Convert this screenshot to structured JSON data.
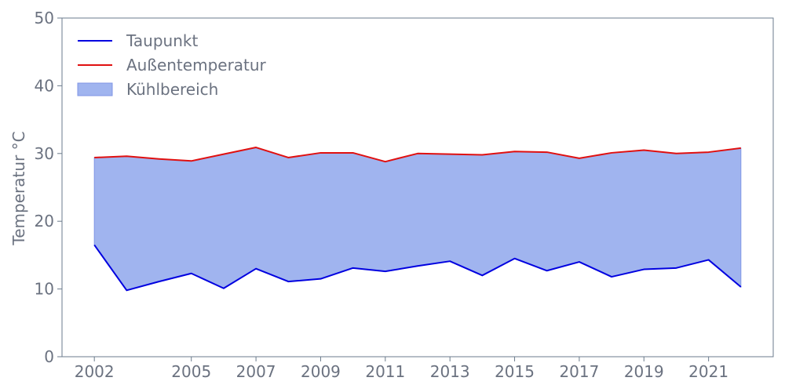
{
  "chart_data": {
    "type": "line",
    "title": "",
    "xlabel": "",
    "ylabel": "Temperatur °C",
    "ylim": [
      0,
      50
    ],
    "xlim": [
      2001,
      2023
    ],
    "grid": false,
    "legend_position": "top-left",
    "x_ticks": [
      2002,
      2005,
      2007,
      2009,
      2011,
      2013,
      2015,
      2017,
      2019,
      2021
    ],
    "y_ticks": [
      0,
      10,
      20,
      30,
      40,
      50
    ],
    "x": [
      2002,
      2003,
      2004,
      2005,
      2006,
      2007,
      2008,
      2009,
      2010,
      2011,
      2012,
      2013,
      2014,
      2015,
      2016,
      2017,
      2018,
      2019,
      2020,
      2021,
      2022
    ],
    "series": [
      {
        "name": "Taupunkt",
        "color": "#0000e0",
        "values": [
          16.5,
          9.8,
          11.1,
          12.3,
          10.1,
          13.0,
          11.1,
          11.5,
          13.1,
          12.6,
          13.4,
          14.1,
          12.0,
          14.5,
          12.7,
          14.0,
          11.8,
          12.9,
          13.1,
          14.3,
          10.3
        ]
      },
      {
        "name": "Außentemperatur",
        "color": "#e01010",
        "values": [
          29.4,
          29.6,
          29.2,
          28.9,
          29.9,
          30.9,
          29.4,
          30.1,
          30.1,
          28.8,
          30.0,
          29.9,
          29.8,
          30.3,
          30.2,
          29.3,
          30.1,
          30.5,
          30.0,
          30.2,
          30.8
        ]
      }
    ],
    "fill_between": {
      "name": "Kühlbereich",
      "color": "#a0b4ef",
      "edge_color": "#8096e6"
    },
    "axis_color": "#6b7b8c",
    "text_color": "#6b7280"
  }
}
